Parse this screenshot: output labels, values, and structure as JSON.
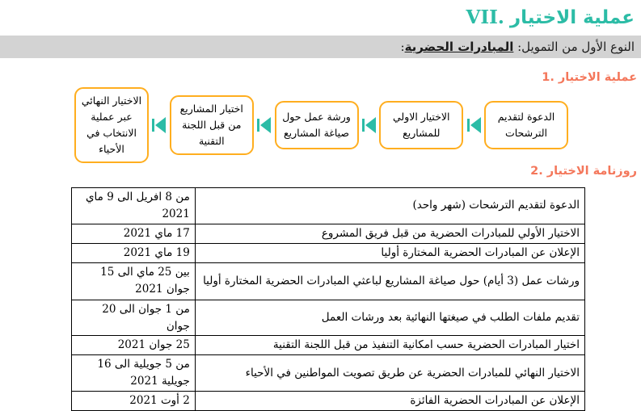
{
  "colors": {
    "teal": "#2cbca6",
    "coral": "#f4775b",
    "amber": "#ffae1f",
    "band": "#d3d3d3"
  },
  "title": {
    "number": "VII.",
    "text": "عملية الاختيار"
  },
  "subtitle": {
    "prefix": "النوع الأول من التمويل: ",
    "emphasis": "المبادرات الحضرية",
    "suffix": ":"
  },
  "sections": {
    "s1": {
      "number": "1.",
      "text": "عملية الاختيار"
    },
    "s2": {
      "number": "2.",
      "text": "روزنامة الاختيار"
    }
  },
  "flowchart": {
    "steps": [
      {
        "label": "الدعوة لتقديم الترشحات"
      },
      {
        "label": "الاختيار الاولي للمشاريع"
      },
      {
        "label": "ورشة عمل حول صياغة المشاريع"
      },
      {
        "label": "اختيار المشاريع من قبل اللجنة التقنية"
      },
      {
        "label": "الاختيار النهائي عبر عملية الانتخاب في الأحياء"
      }
    ]
  },
  "calendar": {
    "rows": [
      {
        "activity": "الدعوة لتقديم الترشحات (شهر واحد)",
        "date": "من 8 افريل الى 9 ماي 2021"
      },
      {
        "activity": "الاختيار الأولي للمبادرات الحضرية من قبل فريق المشروع",
        "date": "17 ماي 2021"
      },
      {
        "activity": "الإعلان عن المبادرات الحضرية المختارة أوليا",
        "date": "19 ماي 2021"
      },
      {
        "activity": "ورشات عمل (3 أيام) حول صياغة المشاريع لباعثي المبادرات الحضرية المختارة أوليا",
        "date": "بين 25 ماي الى 15 جوان 2021"
      },
      {
        "activity": "تقديم ملفات الطلب في صيغتها النهائية بعد ورشات العمل",
        "date": "من 1 جوان الى 20 جوان"
      },
      {
        "activity": "اختيار المبادرات الحضرية حسب امكانية التنفيذ من قبل اللجنة التقنية",
        "date": "25 جوان 2021"
      },
      {
        "activity": "الاختيار النهائي للمبادرات الحضرية عن طريق تصويت المواطنين في الأحياء",
        "date": "من 5 جويلية الى 16 جويلية 2021"
      },
      {
        "activity": "الإعلان عن المبادرات الحضرية الفائزة",
        "date": "2 أوت 2021"
      }
    ]
  }
}
